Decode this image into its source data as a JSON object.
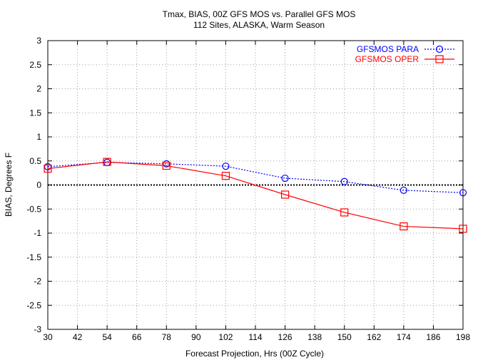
{
  "chart_data": {
    "type": "line",
    "title": "Tmax, BIAS, 00Z GFS MOS vs. Parallel GFS MOS",
    "subtitle": "112 Sites, ALASKA, Warm Season",
    "xlabel": "Forecast Projection, Hrs (00Z Cycle)",
    "ylabel": "BIAS, Degrees F",
    "xlim": [
      30,
      198
    ],
    "ylim": [
      -3,
      3
    ],
    "xticks": [
      30,
      42,
      54,
      66,
      78,
      90,
      102,
      114,
      126,
      138,
      150,
      162,
      174,
      186,
      198
    ],
    "yticks": [
      -3,
      -2.5,
      -2,
      -1.5,
      -1,
      -0.5,
      0,
      0.5,
      1,
      1.5,
      2,
      2.5,
      3
    ],
    "xtick_labels": [
      "30",
      "42",
      "54",
      "66",
      "78",
      "90",
      "102",
      "114",
      "126",
      "138",
      "150",
      "162",
      "174",
      "186",
      "198"
    ],
    "ytick_labels": [
      "-3",
      "-2.5",
      "-2",
      "-1.5",
      "-1",
      "-0.5",
      "0",
      "0.5",
      "1",
      "1.5",
      "2",
      "2.5",
      "3"
    ],
    "grid": true,
    "legend_position": "top-right",
    "x": [
      30,
      54,
      78,
      102,
      126,
      150,
      174,
      198
    ],
    "series": [
      {
        "name": "GFSMOS PARA",
        "values": [
          0.38,
          0.47,
          0.44,
          0.39,
          0.14,
          0.07,
          -0.11,
          -0.16
        ],
        "color": "#0000ff",
        "marker": "circle",
        "line_style": "dotted"
      },
      {
        "name": "GFSMOS OPER",
        "values": [
          0.34,
          0.48,
          0.4,
          0.19,
          -0.2,
          -0.57,
          -0.86,
          -0.91
        ],
        "color": "#ff0000",
        "marker": "square",
        "line_style": "solid"
      }
    ],
    "zero_line": {
      "value": 0,
      "color": "#000000",
      "style": "dotted"
    }
  }
}
